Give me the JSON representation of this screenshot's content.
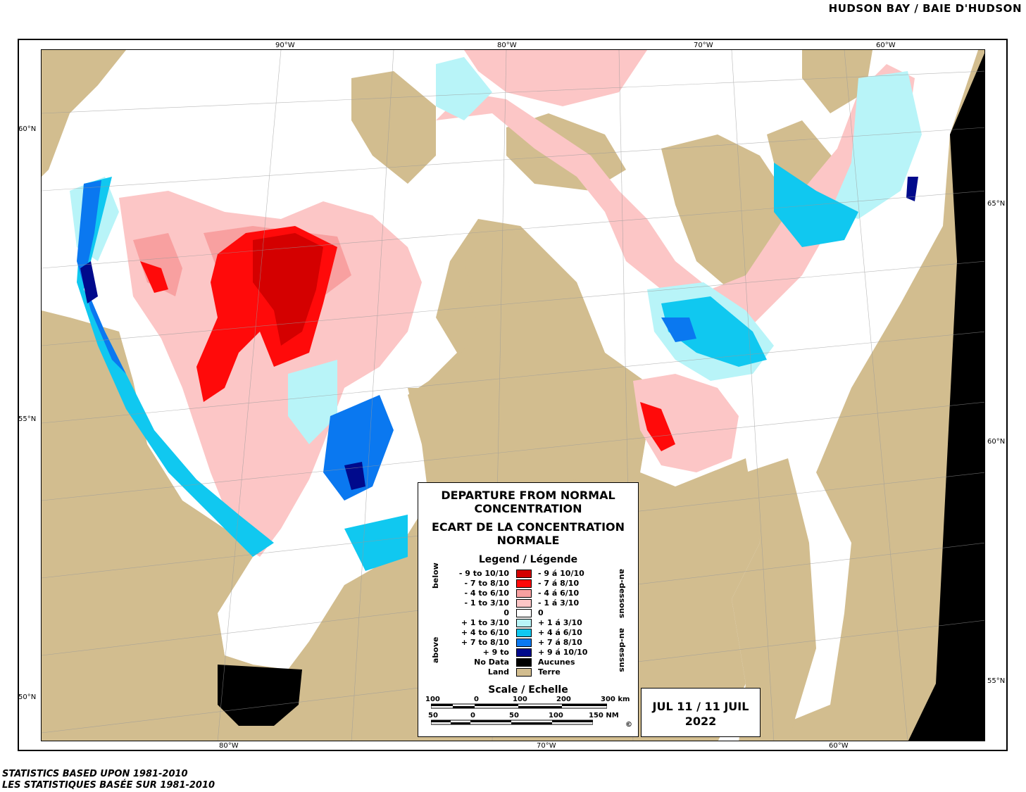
{
  "region_title": "HUDSON BAY / BAIE D'HUDSON",
  "top_lon_labels": [
    "90°W",
    "80°W",
    "70°W",
    "60°W"
  ],
  "bottom_lon_labels": [
    "80°W",
    "70°W",
    "60°W"
  ],
  "left_lat_labels": [
    "60°N",
    "55°N",
    "50°N"
  ],
  "right_lat_labels": [
    "65°N",
    "60°N",
    "55°N"
  ],
  "legend": {
    "title_en_1": "DEPARTURE FROM NORMAL",
    "title_en_2": "CONCENTRATION",
    "title_fr_1": "ECART DE LA CONCENTRATION",
    "title_fr_2": "NORMALE",
    "heading": "Legend / Légende",
    "label_below": "below",
    "label_above": "above",
    "label_au_dessous": "au-dessous",
    "label_au_dessus": "au-dessus",
    "items": [
      {
        "en": "- 9 to 10/10",
        "fr": "- 9 á 10/10",
        "color": "#d40000"
      },
      {
        "en": "- 7 to 8/10",
        "fr": "- 7 á 8/10",
        "color": "#ff0a0a"
      },
      {
        "en": "- 4 to 6/10",
        "fr": "- 4 á 6/10",
        "color": "#f8a0a0"
      },
      {
        "en": "- 1 to 3/10",
        "fr": "- 1 á 3/10",
        "color": "#fcc6c6"
      },
      {
        "en": "0",
        "fr": "0",
        "color": "#ffffff"
      },
      {
        "en": "+ 1 to 3/10",
        "fr": "+ 1 á 3/10",
        "color": "#b8f4f8"
      },
      {
        "en": "+ 4 to 6/10",
        "fr": "+ 4 á 6/10",
        "color": "#10c8f0"
      },
      {
        "en": "+ 7 to 8/10",
        "fr": "+ 7 á 8/10",
        "color": "#0a78f0"
      },
      {
        "en": "+ 9 to",
        "fr": "+ 9 á 10/10",
        "color": "#000a8c"
      },
      {
        "en": "No Data",
        "fr": "Aucunes",
        "color": "#000000"
      },
      {
        "en": "Land",
        "fr": "Terre",
        "color": "#d2bd8f"
      }
    ],
    "scale_title": "Scale / Echelle",
    "scale_km_labels": [
      "100",
      "0",
      "100",
      "200",
      "300 km"
    ],
    "scale_nm_labels": [
      "50",
      "0",
      "50",
      "100",
      "150 NM"
    ],
    "copyright": "©"
  },
  "date_line_1": "JUL 11 / 11 JUIL",
  "date_line_2": "2022",
  "footnote_en": "STATISTICS BASED UPON 1981-2010",
  "footnote_fr": "LES STATISTIQUES BASÉE SUR 1981-2010"
}
